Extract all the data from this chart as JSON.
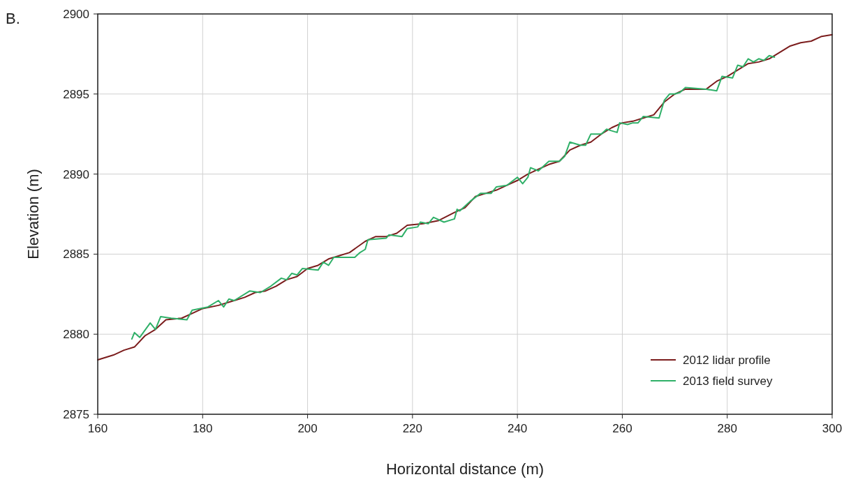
{
  "chart_data": {
    "type": "line",
    "xlabel": "Horizontal distance (m)",
    "ylabel": "Elevation (m)",
    "annotations": [
      "B."
    ],
    "xlim": [
      160,
      300
    ],
    "xticks": [
      160,
      180,
      200,
      220,
      240,
      260,
      280,
      300
    ],
    "ylim": [
      2875,
      2900
    ],
    "yticks": [
      2875,
      2880,
      2885,
      2890,
      2895,
      2900
    ],
    "grid": true,
    "legend": "bottom right",
    "line_style": "solid",
    "marker": "none",
    "series": [
      {
        "name": "2012 lidar profile",
        "color": "#7b1c1c",
        "x": [
          160,
          163,
          165,
          167,
          169,
          171,
          173,
          176,
          178,
          180,
          183,
          186,
          188,
          190,
          192,
          194,
          196,
          198,
          200,
          202,
          204,
          206,
          208,
          211,
          213,
          215,
          217,
          219,
          222,
          225,
          228,
          230,
          232,
          234,
          236,
          238,
          240,
          242,
          244,
          246,
          248,
          250,
          252,
          254,
          256,
          258,
          260,
          262,
          264,
          266,
          268,
          270,
          272,
          274,
          276,
          278,
          280,
          282,
          284,
          286,
          288,
          290,
          292,
          294,
          296,
          298,
          300
        ],
        "values": [
          2878.4,
          2878.7,
          2879.0,
          2879.2,
          2879.9,
          2880.3,
          2880.9,
          2881.0,
          2881.3,
          2881.6,
          2881.8,
          2882.1,
          2882.3,
          2882.6,
          2882.7,
          2883.0,
          2883.4,
          2883.6,
          2884.1,
          2884.3,
          2884.7,
          2884.9,
          2885.1,
          2885.8,
          2886.1,
          2886.1,
          2886.3,
          2886.8,
          2886.9,
          2887.1,
          2887.6,
          2887.9,
          2888.6,
          2888.8,
          2889.0,
          2889.3,
          2889.6,
          2890.0,
          2890.3,
          2890.6,
          2890.8,
          2891.5,
          2891.8,
          2892.0,
          2892.5,
          2892.9,
          2893.2,
          2893.3,
          2893.5,
          2893.7,
          2894.5,
          2895.0,
          2895.3,
          2895.3,
          2895.3,
          2895.8,
          2896.1,
          2896.5,
          2896.9,
          2897.0,
          2897.2,
          2897.6,
          2898.0,
          2898.2,
          2898.3,
          2898.6,
          2898.7
        ]
      },
      {
        "name": "2013 field survey",
        "color": "#2fb068",
        "x": [
          166.5,
          167,
          168,
          170,
          171,
          172,
          174,
          177,
          178,
          181,
          183,
          184,
          185,
          186,
          189,
          191,
          193,
          195,
          196,
          197,
          198,
          199,
          202,
          203,
          204,
          205,
          207,
          209,
          210,
          211,
          211.5,
          215,
          215.5,
          218,
          219,
          221,
          221.5,
          223,
          224,
          226,
          228,
          228.5,
          229,
          231,
          233,
          235,
          236,
          238,
          240,
          241,
          242,
          242.5,
          244,
          246,
          248,
          249,
          250,
          252,
          253,
          254,
          256,
          257,
          258,
          259,
          259.5,
          261,
          262,
          263,
          264,
          267,
          268,
          269,
          270,
          271,
          272,
          276,
          278,
          279,
          281,
          282,
          283,
          284,
          285,
          286,
          287,
          288,
          289
        ],
        "values": [
          2879.7,
          2880.1,
          2879.8,
          2880.7,
          2880.3,
          2881.1,
          2881.0,
          2880.9,
          2881.5,
          2881.7,
          2882.1,
          2881.7,
          2882.2,
          2882.1,
          2882.7,
          2882.6,
          2883.0,
          2883.5,
          2883.4,
          2883.8,
          2883.7,
          2884.1,
          2884.0,
          2884.5,
          2884.3,
          2884.8,
          2884.8,
          2884.8,
          2885.1,
          2885.3,
          2885.9,
          2886.0,
          2886.2,
          2886.1,
          2886.6,
          2886.7,
          2887.0,
          2886.9,
          2887.3,
          2887.0,
          2887.2,
          2887.8,
          2887.7,
          2888.3,
          2888.8,
          2888.8,
          2889.2,
          2889.3,
          2889.8,
          2889.4,
          2889.8,
          2890.4,
          2890.2,
          2890.8,
          2890.8,
          2891.1,
          2892.0,
          2891.8,
          2891.8,
          2892.5,
          2892.5,
          2892.8,
          2892.7,
          2892.6,
          2893.2,
          2893.1,
          2893.2,
          2893.2,
          2893.6,
          2893.5,
          2894.6,
          2895.0,
          2895.0,
          2895.1,
          2895.4,
          2895.3,
          2895.2,
          2896.1,
          2896.0,
          2896.8,
          2896.7,
          2897.2,
          2897.0,
          2897.2,
          2897.1,
          2897.4,
          2897.3
        ]
      }
    ]
  }
}
